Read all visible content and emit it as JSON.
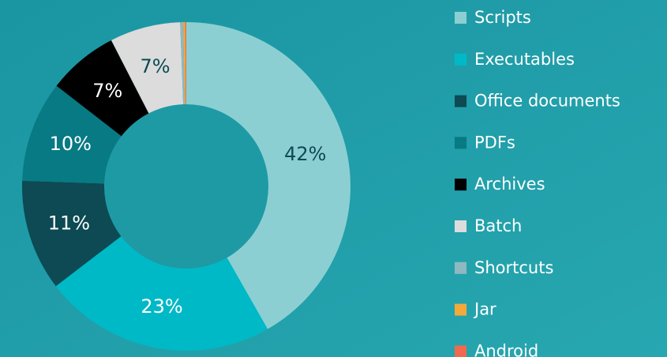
{
  "chart_data": {
    "type": "donut",
    "categories": [
      "Scripts",
      "Executables",
      "Office documents",
      "PDFs",
      "Archives",
      "Batch",
      "Shortcuts",
      "Jar",
      "Android"
    ],
    "values": [
      42,
      23,
      11,
      10,
      7,
      7,
      0.3,
      0.2,
      0.1
    ],
    "value_labels": [
      "42%",
      "23%",
      "11%",
      "10%",
      "7%",
      "7%",
      null,
      null,
      null
    ],
    "colors": [
      "#8ccfd3",
      "#00b9c6",
      "#0d4a53",
      "#087a84",
      "#000000",
      "#dcdcdc",
      "#8fb8c0",
      "#f5a93a",
      "#f06a4e"
    ]
  }
}
